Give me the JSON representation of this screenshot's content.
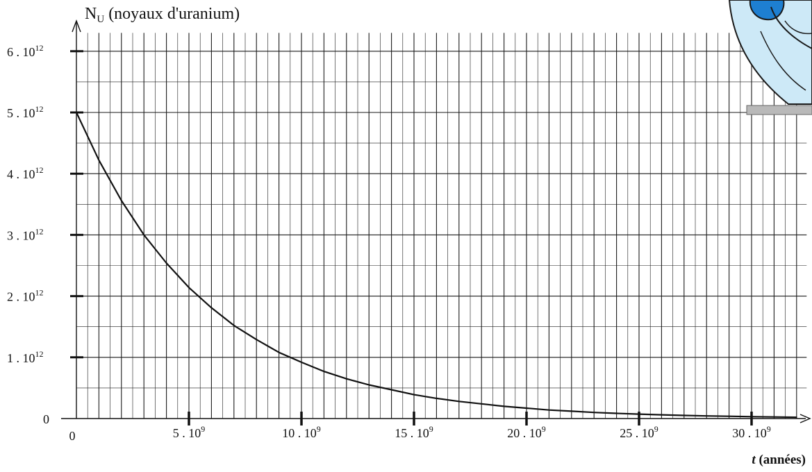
{
  "chart_data": {
    "type": "line",
    "ylabel_main": "N",
    "ylabel_sub": "U",
    "ylabel_rest": " (noyaux d'uranium)",
    "xlabel_var": "t",
    "xlabel_rest": " (années)",
    "xlim": [
      0,
      32.2
    ],
    "ylim": [
      0,
      6
    ],
    "x_ticks": [
      {
        "value": 0,
        "base": "0",
        "exp": ""
      },
      {
        "value": 5,
        "base": "5 . 10",
        "exp": "9"
      },
      {
        "value": 10,
        "base": "10 . 10",
        "exp": "9"
      },
      {
        "value": 15,
        "base": "15 . 10",
        "exp": "9"
      },
      {
        "value": 20,
        "base": "20 . 10",
        "exp": "9"
      },
      {
        "value": 25,
        "base": "25 . 10",
        "exp": "9"
      },
      {
        "value": 30,
        "base": "30 . 10",
        "exp": "9"
      }
    ],
    "y_ticks": [
      {
        "value": 0,
        "base": "0",
        "exp": ""
      },
      {
        "value": 1,
        "base": "1 . 10",
        "exp": "12"
      },
      {
        "value": 2,
        "base": "2 . 10",
        "exp": "12"
      },
      {
        "value": 3,
        "base": "3 . 10",
        "exp": "12"
      },
      {
        "value": 4,
        "base": "4 . 10",
        "exp": "12"
      },
      {
        "value": 5,
        "base": "5 . 10",
        "exp": "12"
      },
      {
        "value": 6,
        "base": "6 . 10",
        "exp": "12"
      }
    ],
    "units_note": "x values in 10^9 années, y values in 10^12 noyaux",
    "grid": true,
    "series": [
      {
        "x": [
          0,
          1,
          2,
          3,
          4,
          5,
          6,
          7,
          8,
          9,
          10,
          11,
          12,
          13,
          14,
          15,
          16,
          17,
          18,
          19,
          20,
          21,
          22,
          23,
          24,
          25,
          26,
          27,
          28,
          29,
          30,
          31,
          32
        ],
        "y": [
          5.0,
          4.22,
          3.56,
          3.0,
          2.54,
          2.14,
          1.81,
          1.52,
          1.29,
          1.08,
          0.92,
          0.77,
          0.65,
          0.55,
          0.47,
          0.39,
          0.33,
          0.28,
          0.24,
          0.2,
          0.17,
          0.14,
          0.12,
          0.1,
          0.085,
          0.072,
          0.061,
          0.051,
          0.043,
          0.037,
          0.031,
          0.026,
          0.022
        ]
      }
    ]
  }
}
